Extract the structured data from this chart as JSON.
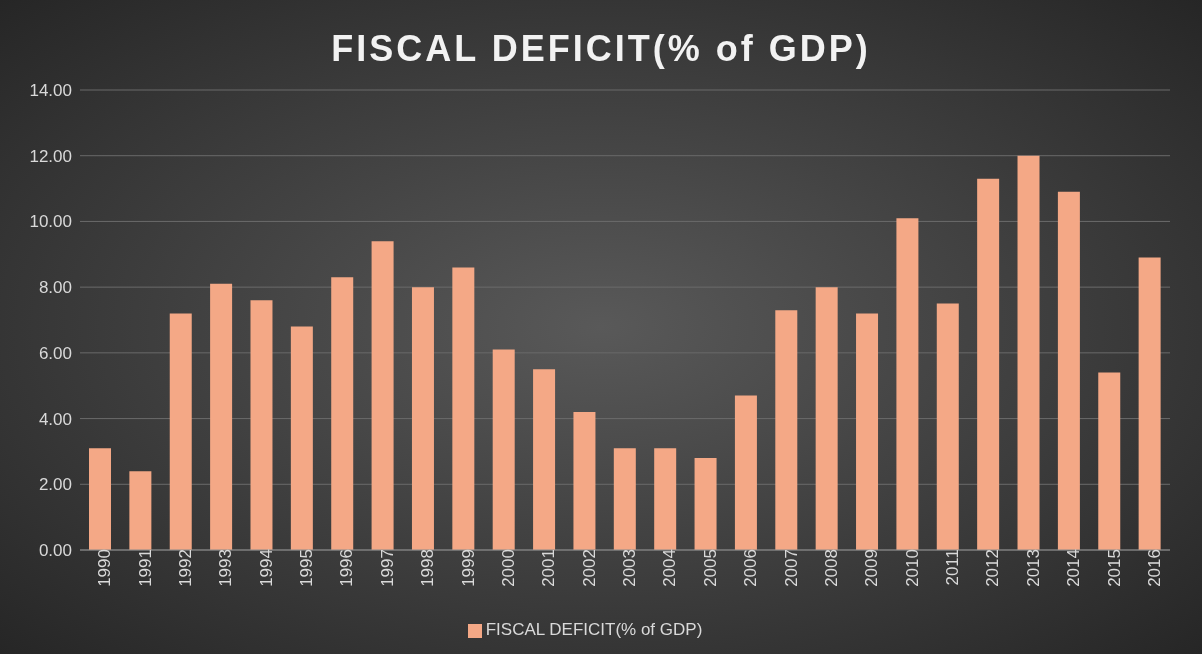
{
  "chart_data": {
    "type": "bar",
    "title": "FISCAL DEFICIT(% of GDP)",
    "categories": [
      "1990",
      "1991",
      "1992",
      "1993",
      "1994",
      "1995",
      "1996",
      "1997",
      "1998",
      "1999",
      "2000",
      "2001",
      "2002",
      "2003",
      "2004",
      "2005",
      "2006",
      "2007",
      "2008",
      "2009",
      "2010",
      "2011",
      "2012",
      "2013",
      "2014",
      "2015",
      "2016"
    ],
    "series": [
      {
        "name": "FISCAL DEFICIT(% of GDP)",
        "color": "#f4a886",
        "values": [
          3.1,
          2.4,
          7.2,
          8.1,
          7.6,
          6.8,
          8.3,
          9.4,
          8.0,
          8.6,
          6.1,
          5.5,
          4.2,
          3.1,
          3.1,
          2.8,
          4.7,
          7.3,
          8.0,
          7.2,
          10.1,
          7.5,
          11.3,
          12.0,
          10.9,
          5.4,
          8.9
        ]
      }
    ],
    "ylim": [
      0,
      14
    ],
    "yticks": [
      {
        "value": 0,
        "label": "0.00"
      },
      {
        "value": 2,
        "label": "2.00"
      },
      {
        "value": 4,
        "label": "4.00"
      },
      {
        "value": 6,
        "label": "6.00"
      },
      {
        "value": 8,
        "label": "8.00"
      },
      {
        "value": 10,
        "label": "10.00"
      },
      {
        "value": 12,
        "label": "12.00"
      },
      {
        "value": 14,
        "label": "14.00"
      }
    ],
    "grid": "y",
    "legend": "bottom"
  }
}
